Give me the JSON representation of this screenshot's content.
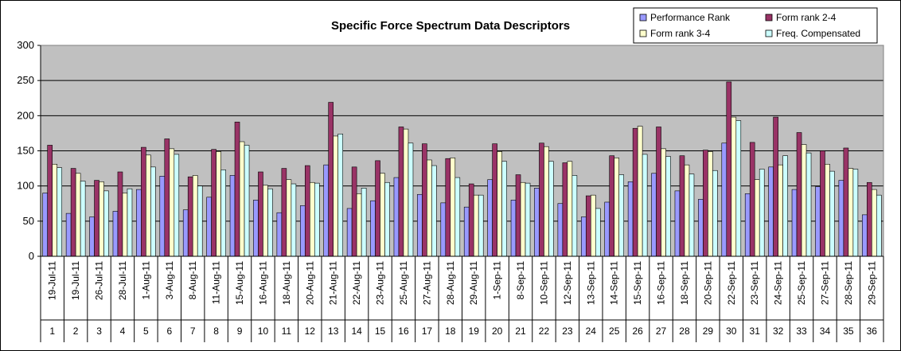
{
  "chart_data": {
    "type": "bar",
    "title": "Specific Force Spectrum Data Descriptors",
    "xlabel": "",
    "ylabel": "",
    "ylim": [
      0,
      300
    ],
    "yticks": [
      0,
      50,
      100,
      150,
      200,
      250,
      300
    ],
    "grid": true,
    "legend_position": "top-right",
    "dates": [
      "19-Jul-11",
      "19-Jul-11",
      "26-Jul-11",
      "28-Jul-11",
      "1-Aug-11",
      "3-Aug-11",
      "8-Aug-11",
      "11-Aug-11",
      "15-Aug-11",
      "16-Aug-11",
      "18-Aug-11",
      "20-Aug-11",
      "21-Aug-11",
      "22-Aug-11",
      "23-Aug-11",
      "25-Aug-11",
      "27-Aug-11",
      "28-Aug-11",
      "29-Aug-11",
      "1-Sep-11",
      "8-Sep-11",
      "10-Sep-11",
      "12-Sep-11",
      "13-Sep-11",
      "14-Sep-11",
      "15-Sep-11",
      "16-Sep-11",
      "18-Sep-11",
      "20-Sep-11",
      "22-Sep-11",
      "23-Sep-11",
      "24-Sep-11",
      "25-Sep-11",
      "27-Sep-11",
      "28-Sep-11",
      "29-Sep-11"
    ],
    "categories": [
      "1",
      "2",
      "3",
      "4",
      "5",
      "6",
      "7",
      "8",
      "9",
      "10",
      "11",
      "12",
      "13",
      "14",
      "15",
      "16",
      "17",
      "18",
      "19",
      "20",
      "21",
      "22",
      "23",
      "24",
      "25",
      "26",
      "27",
      "28",
      "29",
      "30",
      "31",
      "32",
      "33",
      "34",
      "35",
      "36"
    ],
    "series": [
      {
        "name": "Performance Rank",
        "color": "#9999ff",
        "values": [
          90,
          61,
          56,
          64,
          95,
          114,
          66,
          84,
          115,
          80,
          62,
          72,
          130,
          68,
          79,
          112,
          88,
          76,
          70,
          109,
          80,
          97,
          75,
          56,
          77,
          106,
          118,
          93,
          81,
          161,
          89,
          127,
          95,
          99,
          108,
          59
        ]
      },
      {
        "name": "Form rank 2-4",
        "color": "#993366",
        "values": [
          158,
          125,
          108,
          120,
          155,
          167,
          113,
          152,
          191,
          120,
          125,
          129,
          219,
          127,
          136,
          184,
          160,
          139,
          103,
          160,
          116,
          161,
          133,
          86,
          143,
          182,
          184,
          143,
          151,
          248,
          162,
          198,
          176,
          150,
          154,
          105
        ]
      },
      {
        "name": "Form rank 3-4",
        "color": "#ffffcc",
        "values": [
          131,
          118,
          106,
          90,
          144,
          153,
          115,
          149,
          163,
          101,
          109,
          105,
          171,
          89,
          118,
          181,
          137,
          140,
          87,
          149,
          105,
          156,
          135,
          87,
          140,
          185,
          153,
          130,
          149,
          198,
          109,
          130,
          159,
          131,
          125,
          95
        ]
      },
      {
        "name": "Freq. Compensated",
        "color": "#ccffff",
        "values": [
          126,
          107,
          93,
          96,
          127,
          145,
          100,
          123,
          158,
          96,
          103,
          104,
          174,
          97,
          105,
          161,
          129,
          112,
          87,
          135,
          104,
          135,
          115,
          68,
          116,
          145,
          142,
          117,
          122,
          193,
          124,
          143,
          147,
          121,
          124,
          87
        ]
      }
    ]
  }
}
